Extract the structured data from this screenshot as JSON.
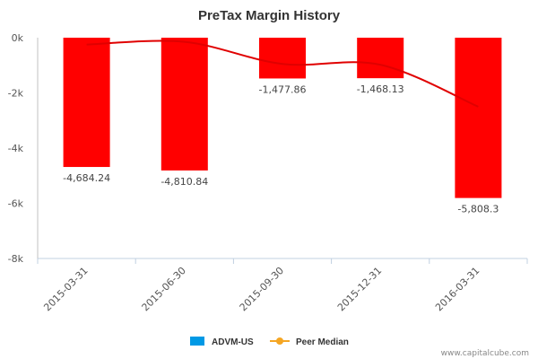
{
  "chart_data": {
    "type": "bar",
    "title": "PreTax Margin History",
    "categories": [
      "2015-03-31",
      "2015-06-30",
      "2015-09-30",
      "2015-12-31",
      "2016-03-31"
    ],
    "series": [
      {
        "name": "ADVM-US",
        "kind": "bar",
        "values": [
          -4684.24,
          -4810.84,
          -1477.86,
          -1468.13,
          -5808.3
        ],
        "labels": [
          "-4,684.24",
          "-4,810.84",
          "-1,477.86",
          "-1,468.13",
          "-5,808.3"
        ],
        "color": "#ff0000",
        "legend_color": "#0099e5"
      },
      {
        "name": "Peer Median",
        "kind": "line",
        "values": [
          -250,
          -150,
          -950,
          -980,
          -2500
        ],
        "color": "#e00000",
        "legend_color": "#f5a623"
      }
    ],
    "y_ticks": [
      0,
      -2000,
      -4000,
      -6000,
      -8000
    ],
    "y_tick_labels": [
      "0k",
      "-2k",
      "-4k",
      "-6k",
      "-8k"
    ],
    "ylim": [
      -8000,
      0
    ],
    "xlabel": "",
    "ylabel": "",
    "legend_position": "bottom-center",
    "credit": "www.capitalcube.com"
  }
}
